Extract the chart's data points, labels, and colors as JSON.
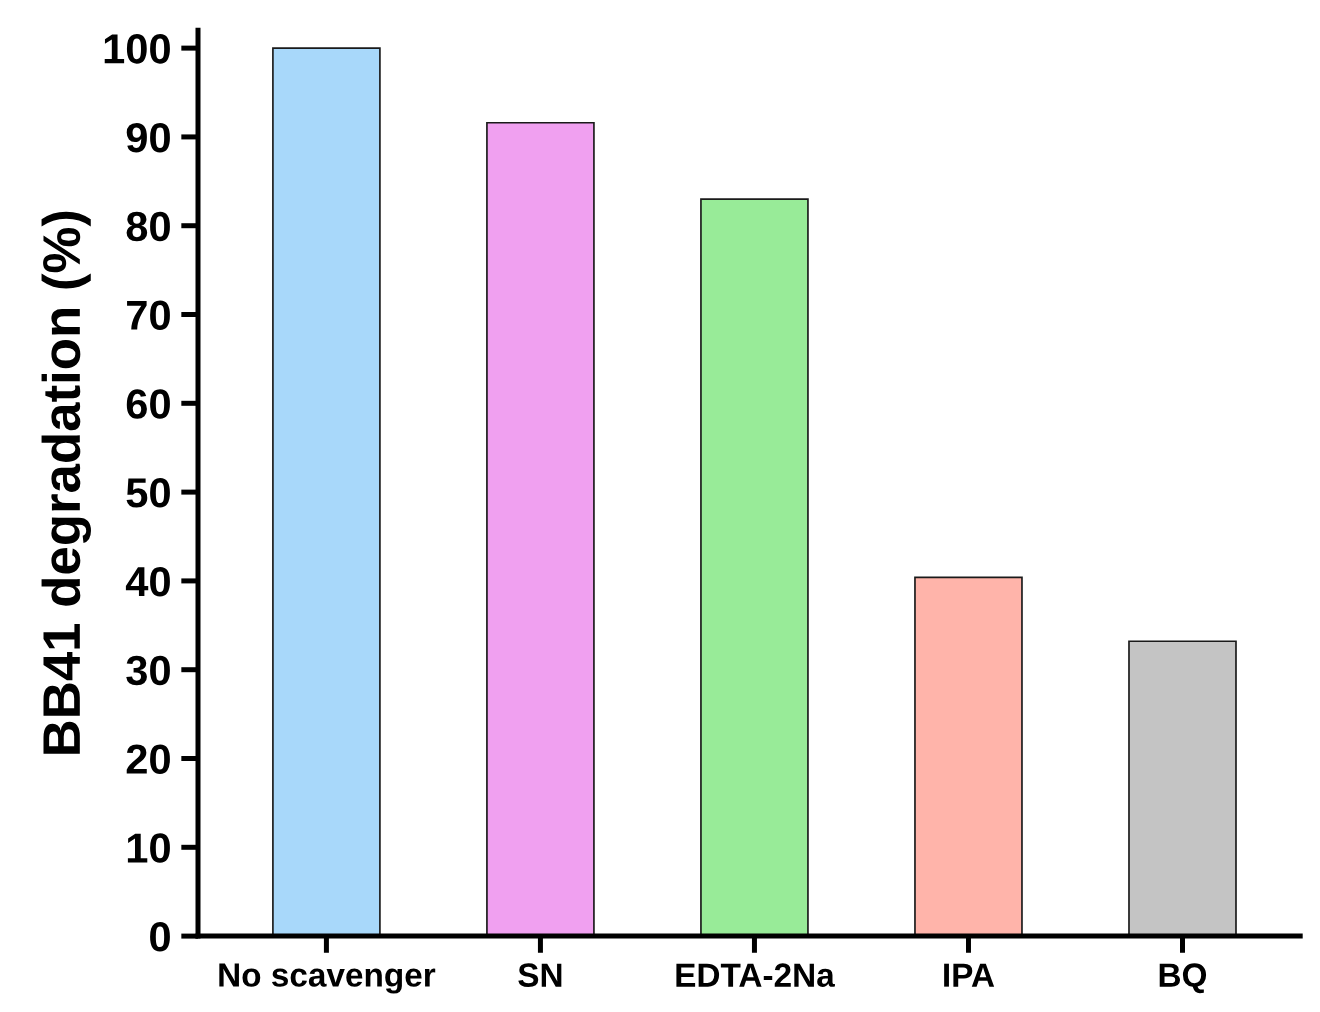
{
  "chart_data": {
    "type": "bar",
    "ylabel": "BB41 degradation (%)",
    "categories": [
      "No scavenger",
      "SN",
      "EDTA-2Na",
      "IPA",
      "BQ"
    ],
    "values": [
      100,
      91.6,
      83,
      40.4,
      33.2
    ],
    "colors": [
      "#a8d8fa",
      "#f0a0f0",
      "#98eb98",
      "#ffb4aa",
      "#c4c4c4"
    ],
    "ylim": [
      0,
      102
    ],
    "yticks": [
      0,
      10,
      20,
      30,
      40,
      50,
      60,
      70,
      80,
      90,
      100
    ],
    "grid": false,
    "legend": false
  }
}
